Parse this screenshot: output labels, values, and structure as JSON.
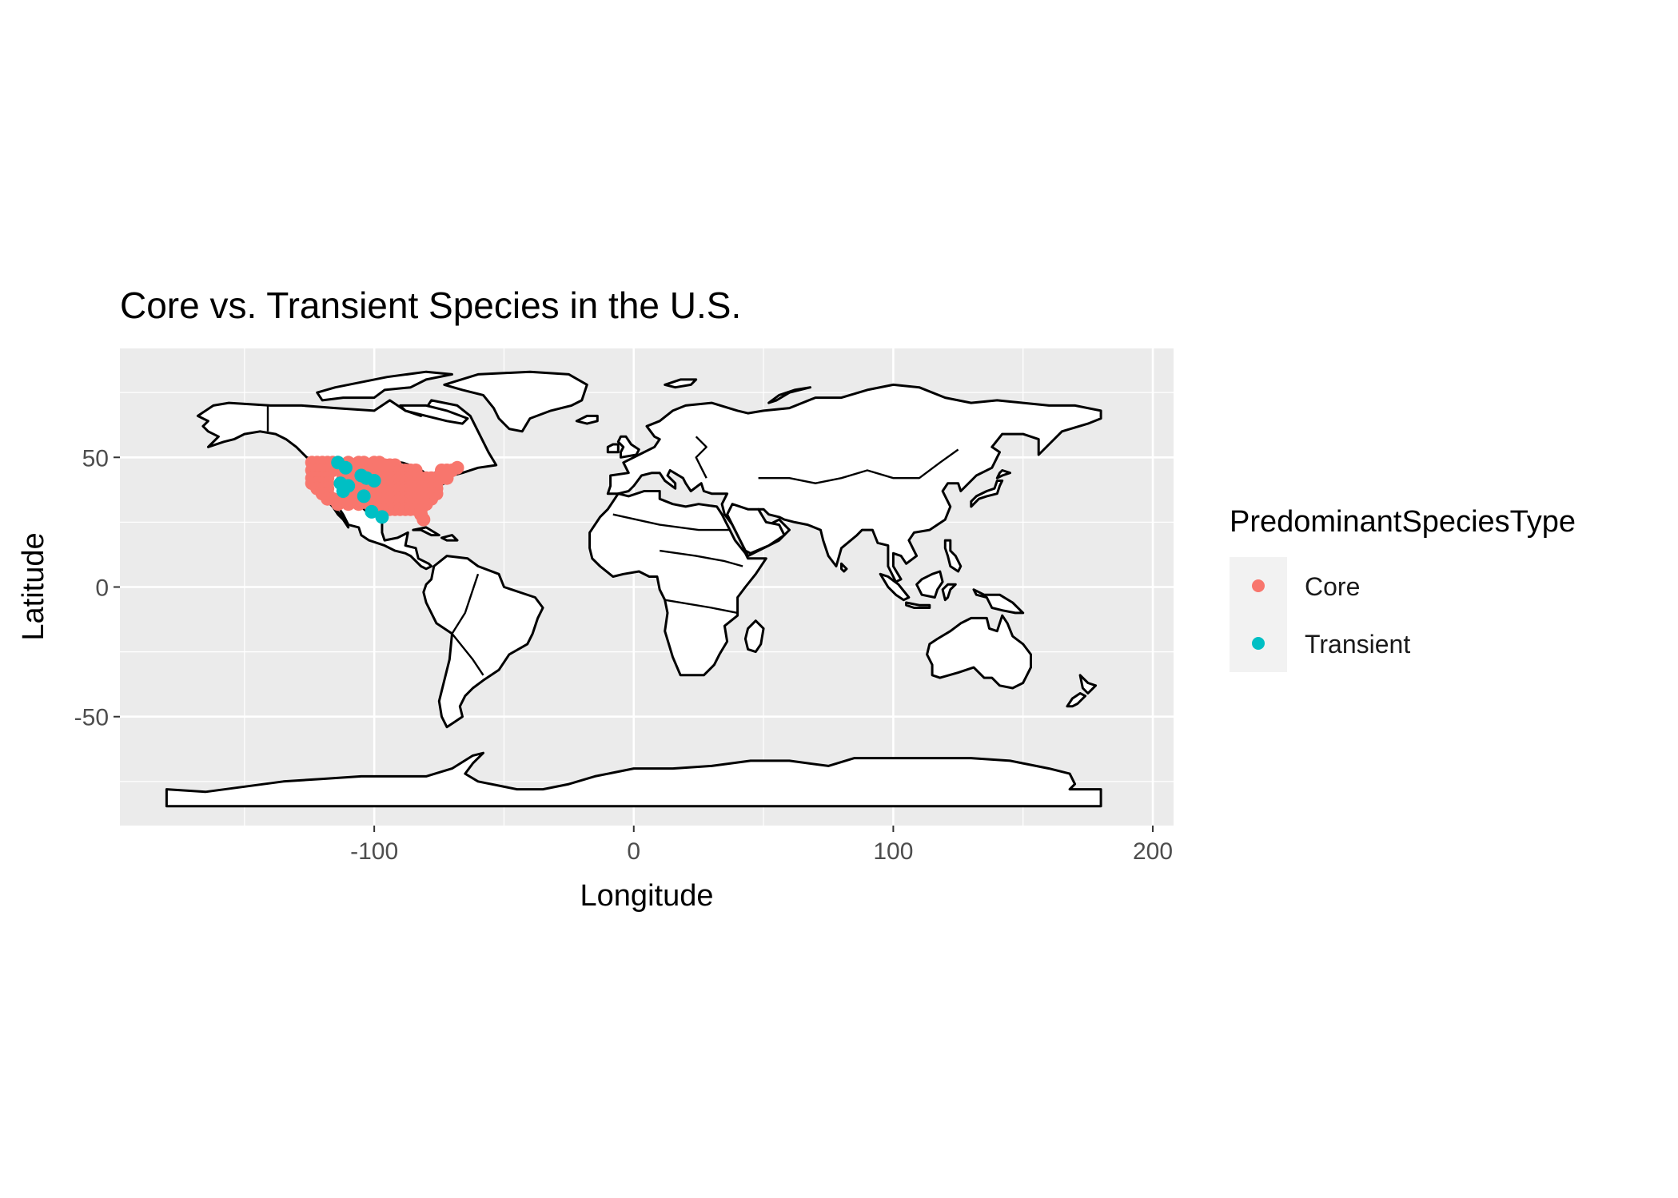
{
  "chart_data": {
    "type": "scatter",
    "title": "Core vs. Transient Species in the U.S.",
    "xlabel": "Longitude",
    "ylabel": "Latitude",
    "xlim": [
      -198,
      208
    ],
    "ylim": [
      -92,
      92
    ],
    "x_ticks": [
      {
        "value": -100,
        "label": "-100"
      },
      {
        "value": 0,
        "label": "0"
      },
      {
        "value": 100,
        "label": "100"
      },
      {
        "value": 200,
        "label": "200"
      }
    ],
    "y_ticks": [
      {
        "value": -50,
        "label": "-50"
      },
      {
        "value": 0,
        "label": "0"
      },
      {
        "value": 50,
        "label": "50"
      }
    ],
    "grid": true,
    "legend": {
      "title": "PredominantSpeciesType",
      "position": "right",
      "entries": [
        {
          "label": "Core",
          "color": "#F8766D"
        },
        {
          "label": "Transient",
          "color": "#00BFC4"
        }
      ]
    },
    "basemap": "world country outlines (white fill, black border)",
    "series": [
      {
        "name": "Core",
        "color": "#F8766D",
        "points": [
          [
            -124,
            48
          ],
          [
            -122,
            48
          ],
          [
            -120,
            48
          ],
          [
            -118,
            48
          ],
          [
            -116,
            48
          ],
          [
            -114,
            48
          ],
          [
            -110,
            48
          ],
          [
            -106,
            48
          ],
          [
            -104,
            48
          ],
          [
            -100,
            48
          ],
          [
            -98,
            48
          ],
          [
            -96,
            47
          ],
          [
            -94,
            47
          ],
          [
            -92,
            47
          ],
          [
            -124,
            45
          ],
          [
            -122,
            45
          ],
          [
            -120,
            45
          ],
          [
            -118,
            45
          ],
          [
            -116,
            45
          ],
          [
            -112,
            45
          ],
          [
            -108,
            45
          ],
          [
            -104,
            45
          ],
          [
            -100,
            45
          ],
          [
            -98,
            45
          ],
          [
            -96,
            45
          ],
          [
            -94,
            45
          ],
          [
            -92,
            45
          ],
          [
            -90,
            45
          ],
          [
            -88,
            45
          ],
          [
            -86,
            45
          ],
          [
            -84,
            45
          ],
          [
            -74,
            45
          ],
          [
            -72,
            45
          ],
          [
            -70,
            45
          ],
          [
            -68,
            46
          ],
          [
            -124,
            42
          ],
          [
            -122,
            42
          ],
          [
            -120,
            42
          ],
          [
            -118,
            42
          ],
          [
            -112,
            42
          ],
          [
            -108,
            42
          ],
          [
            -104,
            42
          ],
          [
            -100,
            42
          ],
          [
            -98,
            42
          ],
          [
            -96,
            42
          ],
          [
            -94,
            42
          ],
          [
            -92,
            42
          ],
          [
            -90,
            42
          ],
          [
            -88,
            42
          ],
          [
            -86,
            42
          ],
          [
            -84,
            42
          ],
          [
            -82,
            42
          ],
          [
            -80,
            42
          ],
          [
            -78,
            42
          ],
          [
            -76,
            42
          ],
          [
            -74,
            42
          ],
          [
            -72,
            42
          ],
          [
            -124,
            40
          ],
          [
            -122,
            40
          ],
          [
            -120,
            40
          ],
          [
            -118,
            40
          ],
          [
            -110,
            40
          ],
          [
            -106,
            40
          ],
          [
            -102,
            40
          ],
          [
            -100,
            40
          ],
          [
            -98,
            40
          ],
          [
            -96,
            40
          ],
          [
            -94,
            40
          ],
          [
            -92,
            40
          ],
          [
            -90,
            40
          ],
          [
            -88,
            40
          ],
          [
            -86,
            40
          ],
          [
            -84,
            40
          ],
          [
            -82,
            40
          ],
          [
            -80,
            40
          ],
          [
            -78,
            40
          ],
          [
            -76,
            40
          ],
          [
            -122,
            38
          ],
          [
            -120,
            38
          ],
          [
            -118,
            38
          ],
          [
            -108,
            38
          ],
          [
            -104,
            38
          ],
          [
            -100,
            38
          ],
          [
            -98,
            38
          ],
          [
            -96,
            38
          ],
          [
            -94,
            38
          ],
          [
            -92,
            38
          ],
          [
            -90,
            38
          ],
          [
            -88,
            38
          ],
          [
            -86,
            38
          ],
          [
            -84,
            38
          ],
          [
            -82,
            38
          ],
          [
            -80,
            38
          ],
          [
            -78,
            38
          ],
          [
            -76,
            38
          ],
          [
            -120,
            36
          ],
          [
            -118,
            36
          ],
          [
            -110,
            36
          ],
          [
            -106,
            36
          ],
          [
            -102,
            36
          ],
          [
            -100,
            36
          ],
          [
            -98,
            36
          ],
          [
            -96,
            36
          ],
          [
            -94,
            36
          ],
          [
            -92,
            36
          ],
          [
            -90,
            36
          ],
          [
            -88,
            36
          ],
          [
            -86,
            36
          ],
          [
            -84,
            36
          ],
          [
            -82,
            36
          ],
          [
            -80,
            36
          ],
          [
            -78,
            36
          ],
          [
            -76,
            36
          ],
          [
            -118,
            34
          ],
          [
            -116,
            34
          ],
          [
            -112,
            34
          ],
          [
            -108,
            34
          ],
          [
            -104,
            34
          ],
          [
            -100,
            34
          ],
          [
            -98,
            34
          ],
          [
            -96,
            34
          ],
          [
            -94,
            34
          ],
          [
            -92,
            34
          ],
          [
            -90,
            34
          ],
          [
            -88,
            34
          ],
          [
            -86,
            34
          ],
          [
            -84,
            34
          ],
          [
            -82,
            34
          ],
          [
            -80,
            34
          ],
          [
            -78,
            34
          ],
          [
            -114,
            32
          ],
          [
            -110,
            32
          ],
          [
            -106,
            32
          ],
          [
            -102,
            32
          ],
          [
            -100,
            32
          ],
          [
            -98,
            32
          ],
          [
            -96,
            32
          ],
          [
            -94,
            32
          ],
          [
            -92,
            32
          ],
          [
            -90,
            32
          ],
          [
            -88,
            32
          ],
          [
            -86,
            32
          ],
          [
            -84,
            32
          ],
          [
            -82,
            32
          ],
          [
            -80,
            32
          ],
          [
            -98,
            30
          ],
          [
            -96,
            30
          ],
          [
            -94,
            30
          ],
          [
            -92,
            30
          ],
          [
            -90,
            30
          ],
          [
            -88,
            30
          ],
          [
            -86,
            30
          ],
          [
            -84,
            30
          ],
          [
            -82,
            30
          ],
          [
            -82,
            28
          ],
          [
            -81,
            26
          ]
        ]
      },
      {
        "name": "Transient",
        "color": "#00BFC4",
        "points": [
          [
            -114,
            48
          ],
          [
            -111,
            46
          ],
          [
            -105,
            43
          ],
          [
            -103,
            42
          ],
          [
            -113,
            40
          ],
          [
            -110,
            39
          ],
          [
            -100,
            41
          ],
          [
            -112,
            37
          ],
          [
            -104,
            35
          ],
          [
            -101,
            29
          ],
          [
            -97,
            27
          ]
        ]
      }
    ]
  }
}
